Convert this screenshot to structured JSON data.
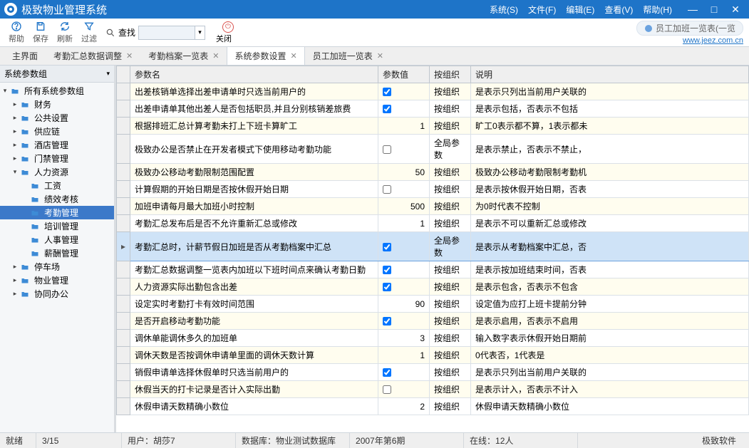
{
  "titlebar": {
    "app_title": "极致物业管理系统",
    "menus": [
      "系统(S)",
      "文件(F)",
      "编辑(E)",
      "查看(V)",
      "帮助(H)"
    ]
  },
  "toolbar": {
    "buttons": [
      {
        "name": "help-button",
        "label": "帮助",
        "icon": "help"
      },
      {
        "name": "save-button",
        "label": "保存",
        "icon": "save"
      },
      {
        "name": "refresh-button",
        "label": "刷新",
        "icon": "refresh"
      },
      {
        "name": "filter-button",
        "label": "过滤",
        "icon": "filter"
      }
    ],
    "search_label": "查找",
    "search_value": "",
    "close_label": "关闭",
    "hint_text": "员工加班一览表(一览",
    "hint_link": "www.jeez.com.cn"
  },
  "tabs": [
    {
      "label": "主界面",
      "closable": false,
      "active": false
    },
    {
      "label": "考勤汇总数据调整",
      "closable": true,
      "active": false
    },
    {
      "label": "考勤档案一览表",
      "closable": true,
      "active": false
    },
    {
      "label": "系统参数设置",
      "closable": true,
      "active": true
    },
    {
      "label": "员工加班一览表",
      "closable": true,
      "active": false
    }
  ],
  "sidebar": {
    "header": "系统参数组",
    "tree": [
      {
        "level": 0,
        "label": "所有系统参数组",
        "expanded": true,
        "sel": false,
        "name": "tree-root"
      },
      {
        "level": 1,
        "label": "财务",
        "expanded": false,
        "sel": false,
        "name": "tree-finance"
      },
      {
        "level": 1,
        "label": "公共设置",
        "expanded": false,
        "sel": false,
        "name": "tree-public"
      },
      {
        "level": 1,
        "label": "供应链",
        "expanded": false,
        "sel": false,
        "name": "tree-supply"
      },
      {
        "level": 1,
        "label": "酒店管理",
        "expanded": false,
        "sel": false,
        "name": "tree-hotel"
      },
      {
        "level": 1,
        "label": "门禁管理",
        "expanded": false,
        "sel": false,
        "name": "tree-door"
      },
      {
        "level": 1,
        "label": "人力资源",
        "expanded": true,
        "sel": false,
        "name": "tree-hr"
      },
      {
        "level": 2,
        "label": "工资",
        "expanded": false,
        "sel": false,
        "name": "tree-salary"
      },
      {
        "level": 2,
        "label": "绩效考核",
        "expanded": false,
        "sel": false,
        "name": "tree-perf"
      },
      {
        "level": 2,
        "label": "考勤管理",
        "expanded": false,
        "sel": true,
        "name": "tree-attendance"
      },
      {
        "level": 2,
        "label": "培训管理",
        "expanded": false,
        "sel": false,
        "name": "tree-training"
      },
      {
        "level": 2,
        "label": "人事管理",
        "expanded": false,
        "sel": false,
        "name": "tree-personnel"
      },
      {
        "level": 2,
        "label": "薪酬管理",
        "expanded": false,
        "sel": false,
        "name": "tree-compensation"
      },
      {
        "level": 1,
        "label": "停车场",
        "expanded": false,
        "sel": false,
        "name": "tree-parking"
      },
      {
        "level": 1,
        "label": "物业管理",
        "expanded": false,
        "sel": false,
        "name": "tree-property"
      },
      {
        "level": 1,
        "label": "协同办公",
        "expanded": false,
        "sel": false,
        "name": "tree-oa"
      }
    ]
  },
  "grid": {
    "columns": [
      "参数名",
      "参数值",
      "按组织",
      "说明"
    ],
    "rows": [
      {
        "name": "出差核销单选择出差申请单时只选当前用户的",
        "value": "check:true",
        "org": "按组织",
        "desc": "是表示只列出当前用户关联的",
        "sel": false
      },
      {
        "name": "出差申请单其他出差人是否包括职员,并且分别核销差旅费",
        "value": "check:true",
        "org": "按组织",
        "desc": "是表示包括，否表示不包括",
        "sel": false
      },
      {
        "name": "根据排班汇总计算考勤未打上下班卡算旷工",
        "value": "1",
        "org": "按组织",
        "desc": "旷工0表示都不算，1表示都未",
        "sel": false
      },
      {
        "name": "极致办公是否禁止在开发者模式下使用移动考勤功能",
        "value": "check:false",
        "org": "全局参数",
        "desc": "是表示禁止，否表示不禁止，",
        "sel": false
      },
      {
        "name": "极致办公移动考勤限制范围配置",
        "value": "50",
        "org": "按组织",
        "desc": "极致办公移动考勤限制考勤机",
        "sel": false
      },
      {
        "name": "计算假期的开始日期是否按休假开始日期",
        "value": "check:false",
        "org": "按组织",
        "desc": "是表示按休假开始日期，否表",
        "sel": false
      },
      {
        "name": "加班申请每月最大加班小时控制",
        "value": "500",
        "org": "按组织",
        "desc": "为0时代表不控制",
        "sel": false
      },
      {
        "name": "考勤汇总发布后是否不允许重新汇总或修改",
        "value": "1",
        "org": "按组织",
        "desc": "是表示不可以重新汇总或修改",
        "sel": false
      },
      {
        "name": "考勤汇总时，计薪节假日加班是否从考勤档案中汇总",
        "value": "check:true",
        "org": "全局参数",
        "desc": "是表示从考勤档案中汇总，否",
        "sel": true
      },
      {
        "name": "考勤汇总数据调整一览表内加班以下班时间点来确认考勤日勤",
        "value": "check:true",
        "org": "按组织",
        "desc": "是表示按加班结束时间，否表",
        "sel": false
      },
      {
        "name": "人力资源实际出勤包含出差",
        "value": "check:true",
        "org": "按组织",
        "desc": "是表示包含，否表示不包含",
        "sel": false
      },
      {
        "name": "设定实时考勤打卡有效时间范围",
        "value": "90",
        "org": "按组织",
        "desc": "设定值为应打上班卡提前分钟",
        "sel": false
      },
      {
        "name": "是否开启移动考勤功能",
        "value": "check:true",
        "org": "按组织",
        "desc": "是表示启用，否表示不启用",
        "sel": false
      },
      {
        "name": "调休单能调休多久的加班单",
        "value": "3",
        "org": "按组织",
        "desc": "输入数字表示休假开始日期前",
        "sel": false
      },
      {
        "name": "调休天数是否按调休申请单里面的调休天数计算",
        "value": "1",
        "org": "按组织",
        "desc": "0代表否，1代表是",
        "sel": false
      },
      {
        "name": "销假申请单选择休假单时只选当前用户的",
        "value": "check:true",
        "org": "按组织",
        "desc": "是表示只列出当前用户关联的",
        "sel": false
      },
      {
        "name": "休假当天的打卡记录是否计入实际出勤",
        "value": "check:false",
        "org": "按组织",
        "desc": "是表示计入，否表示不计入",
        "sel": false
      },
      {
        "name": "休假申请天数精确小数位",
        "value": "2",
        "org": "按组织",
        "desc": "休假申请天数精确小数位",
        "sel": false
      }
    ]
  },
  "status": {
    "ready": "就绪",
    "pos": "3/15",
    "user": "用户：胡莎7",
    "db": "数据库：物业测试数据库",
    "period": "2007年第6期",
    "online": "在线：12人",
    "brand": "极致软件"
  },
  "colors": {
    "primary": "#1e74c8",
    "row_alt": "#fffdef",
    "row_sel": "#cfe3f7",
    "tree_sel": "#3c79c9"
  }
}
